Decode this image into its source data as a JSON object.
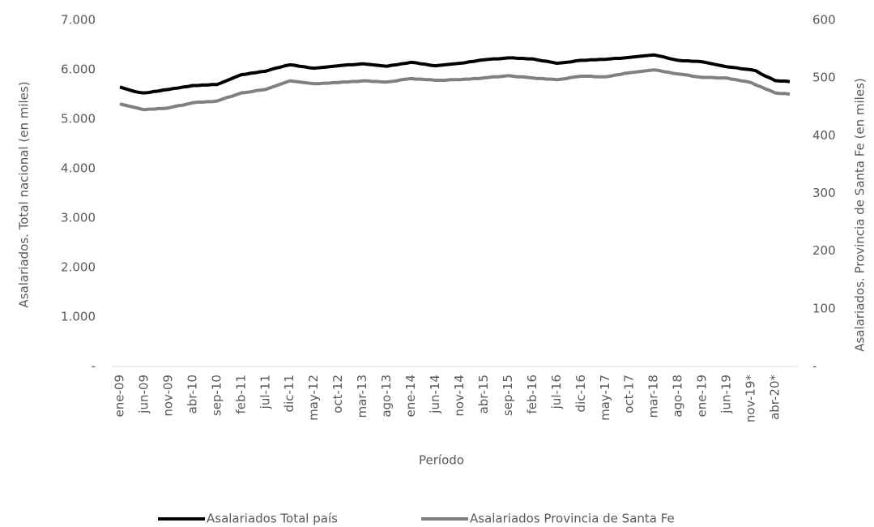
{
  "chart_data": {
    "type": "line",
    "x_label": "Período",
    "y_label": "Asalariados. Total nacional (en miles)",
    "y2_label": "Asalariados. Provincia de Santa Fe (en miles)",
    "ylim": [
      0,
      7000
    ],
    "yticks": [
      {
        "value": 0,
        "label": "-"
      },
      {
        "value": 1000,
        "label": "1.000"
      },
      {
        "value": 2000,
        "label": "2.000"
      },
      {
        "value": 3000,
        "label": "3.000"
      },
      {
        "value": 4000,
        "label": "4.000"
      },
      {
        "value": 5000,
        "label": "5.000"
      },
      {
        "value": 6000,
        "label": "6.000"
      },
      {
        "value": 7000,
        "label": "7.000"
      }
    ],
    "y2lim": [
      0,
      600
    ],
    "y2ticks": [
      {
        "value": 0,
        "label": "-"
      },
      100,
      200,
      300,
      400,
      500,
      600
    ],
    "legend": "bottom",
    "categories": [
      "ene-09",
      null,
      null,
      null,
      null,
      "jun-09",
      null,
      null,
      null,
      null,
      "nov-09",
      null,
      null,
      null,
      null,
      "abr-10",
      null,
      null,
      null,
      null,
      "sep-10",
      null,
      null,
      null,
      null,
      "feb-11",
      null,
      null,
      null,
      null,
      "jul-11",
      null,
      null,
      null,
      null,
      "dic-11",
      null,
      null,
      null,
      null,
      "may-12",
      null,
      null,
      null,
      null,
      "oct-12",
      null,
      null,
      null,
      null,
      "mar-13",
      null,
      null,
      null,
      null,
      "ago-13",
      null,
      null,
      null,
      null,
      "ene-14",
      null,
      null,
      null,
      null,
      "jun-14",
      null,
      null,
      null,
      null,
      "nov-14",
      null,
      null,
      null,
      null,
      "abr-15",
      null,
      null,
      null,
      null,
      "sep-15",
      null,
      null,
      null,
      null,
      "feb-16",
      null,
      null,
      null,
      null,
      "jul-16",
      null,
      null,
      null,
      null,
      "dic-16",
      null,
      null,
      null,
      null,
      "may-17",
      null,
      null,
      null,
      null,
      "oct-17",
      null,
      null,
      null,
      null,
      "mar-18",
      null,
      null,
      null,
      null,
      "ago-18",
      null,
      null,
      null,
      null,
      "ene-19",
      null,
      null,
      null,
      null,
      "jun-19",
      null,
      null,
      null,
      null,
      "nov-19*",
      null,
      null,
      null,
      null,
      "abr-20*",
      null,
      null,
      null
    ],
    "series": [
      {
        "name": "Asalariados Total país",
        "color": "#000000",
        "axis": "y",
        "values": [
          5650,
          5620,
          5590,
          5560,
          5540,
          5530,
          5540,
          5560,
          5570,
          5590,
          5600,
          5620,
          5630,
          5650,
          5660,
          5680,
          5680,
          5690,
          5690,
          5700,
          5700,
          5740,
          5780,
          5820,
          5860,
          5900,
          5910,
          5930,
          5940,
          5960,
          5970,
          6000,
          6030,
          6050,
          6080,
          6100,
          6090,
          6070,
          6060,
          6040,
          6030,
          6040,
          6050,
          6060,
          6070,
          6080,
          6090,
          6100,
          6100,
          6110,
          6120,
          6110,
          6100,
          6090,
          6080,
          6070,
          6090,
          6100,
          6120,
          6130,
          6150,
          6140,
          6120,
          6110,
          6090,
          6080,
          6090,
          6100,
          6110,
          6120,
          6130,
          6140,
          6160,
          6170,
          6190,
          6200,
          6210,
          6220,
          6220,
          6230,
          6240,
          6240,
          6230,
          6230,
          6220,
          6220,
          6200,
          6180,
          6170,
          6150,
          6130,
          6140,
          6150,
          6160,
          6180,
          6190,
          6190,
          6200,
          6200,
          6210,
          6210,
          6220,
          6230,
          6230,
          6240,
          6250,
          6260,
          6270,
          6280,
          6290,
          6300,
          6280,
          6260,
          6230,
          6210,
          6190,
          6180,
          6180,
          6170,
          6170,
          6160,
          6140,
          6120,
          6100,
          6080,
          6060,
          6050,
          6040,
          6020,
          6010,
          6000,
          5980,
          5920,
          5870,
          5830,
          5780,
          5770,
          5770,
          5760
        ]
      },
      {
        "name": "Asalariados Provincia de Santa Fe",
        "color": "#808080",
        "axis": "y2",
        "values": [
          455,
          453,
          451,
          449,
          447,
          445,
          446,
          446,
          447,
          447,
          448,
          450,
          452,
          453,
          455,
          457,
          458,
          458,
          459,
          459,
          460,
          463,
          466,
          468,
          471,
          474,
          475,
          476,
          478,
          479,
          480,
          483,
          486,
          489,
          492,
          495,
          494,
          493,
          492,
          491,
          490,
          490,
          491,
          491,
          492,
          492,
          493,
          493,
          494,
          494,
          495,
          495,
          494,
          494,
          493,
          493,
          494,
          495,
          497,
          498,
          499,
          498,
          498,
          497,
          497,
          496,
          496,
          496,
          497,
          497,
          497,
          498,
          498,
          499,
          499,
          500,
          501,
          502,
          502,
          503,
          504,
          503,
          502,
          502,
          501,
          500,
          499,
          499,
          498,
          498,
          497,
          498,
          499,
          501,
          502,
          503,
          503,
          503,
          502,
          502,
          502,
          503,
          505,
          506,
          508,
          509,
          510,
          511,
          512,
          513,
          514,
          513,
          511,
          510,
          508,
          507,
          506,
          505,
          503,
          502,
          501,
          501,
          501,
          500,
          500,
          500,
          498,
          497,
          495,
          494,
          492,
          488,
          485,
          481,
          478,
          474,
          473,
          473,
          472
        ]
      }
    ]
  }
}
